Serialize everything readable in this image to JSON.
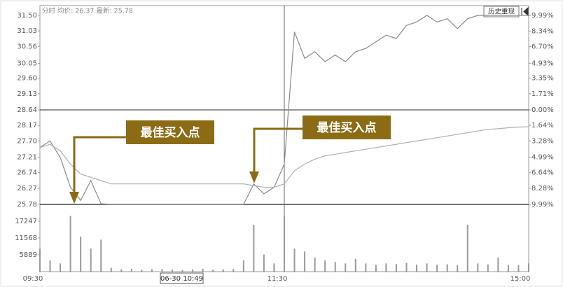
{
  "chart_data": {
    "type": "line",
    "subtitle": "分时 均价: 26.37 最新: 25.78",
    "button": "历史重现",
    "cursor_label": "06-30 10:49",
    "annotations": [
      "最佳买入点",
      "最佳买入点"
    ],
    "x": [
      0,
      5,
      10,
      15,
      20,
      25,
      30,
      35,
      40,
      45,
      50,
      55,
      60,
      65,
      70,
      75,
      80,
      85,
      90,
      95,
      100,
      105,
      110,
      115,
      120,
      125,
      130,
      135,
      140,
      145,
      150,
      155,
      160,
      165,
      170,
      175,
      180,
      185,
      190,
      195,
      200,
      205,
      210,
      215,
      220,
      225,
      230,
      235,
      240
    ],
    "xlim": [
      0,
      240
    ],
    "xticks": [
      {
        "value": 0,
        "label": "09:30"
      },
      {
        "value": 120,
        "label": "11:30"
      },
      {
        "value": 240,
        "label": "15:00"
      }
    ],
    "ylim": [
      25.78,
      31.5
    ],
    "yticks": [
      {
        "value": 31.5,
        "label": "31.50"
      },
      31.03,
      30.56,
      30.05,
      {
        "value": 29.6,
        "label": "29.60"
      },
      29.13,
      28.64,
      28.17,
      {
        "value": 27.7,
        "label": "27.70"
      },
      27.21,
      26.74,
      26.27,
      25.78
    ],
    "y2lim": [
      -9.99,
      9.99
    ],
    "y2ticks": [
      {
        "value": 9.99,
        "label": "9.99%"
      },
      {
        "value": 8.34,
        "label": "8.34%"
      },
      {
        "value": 6.7,
        "label": "6.70%"
      },
      {
        "value": 4.93,
        "label": "4.93%"
      },
      {
        "value": 3.35,
        "label": "3.35%"
      },
      {
        "value": 1.71,
        "label": "1.71%"
      },
      {
        "value": 0,
        "label": "0.00%"
      },
      {
        "value": -1.64,
        "label": "1.64%"
      },
      {
        "value": -3.28,
        "label": "3.28%"
      },
      {
        "value": -4.99,
        "label": "4.99%"
      },
      {
        "value": -6.64,
        "label": "6.64%"
      },
      {
        "value": -8.28,
        "label": "8.28%"
      },
      {
        "value": -9.99,
        "label": "9.99%"
      }
    ],
    "series": [
      {
        "color": "#8a8a8a",
        "values": [
          27.5,
          27.7,
          27.2,
          26.3,
          25.9,
          26.5,
          25.8,
          25.78,
          25.78,
          25.78,
          25.78,
          25.78,
          25.78,
          25.78,
          25.78,
          25.78,
          25.78,
          25.78,
          25.78,
          25.78,
          25.78,
          26.4,
          26.1,
          26.3,
          27.0,
          31.0,
          30.2,
          30.4,
          30.1,
          30.3,
          30.1,
          30.4,
          30.5,
          30.7,
          30.9,
          30.8,
          31.2,
          31.3,
          31.5,
          31.3,
          31.4,
          31.1,
          31.4,
          31.5,
          31.5,
          31.5,
          31.5,
          31.5,
          31.5
        ]
      },
      {
        "color": "#b0b0b0",
        "values": [
          27.5,
          27.6,
          27.4,
          27.0,
          26.7,
          26.6,
          26.5,
          26.4,
          26.4,
          26.4,
          26.4,
          26.4,
          26.4,
          26.4,
          26.4,
          26.4,
          26.4,
          26.4,
          26.4,
          26.4,
          26.4,
          26.35,
          26.3,
          26.3,
          26.4,
          26.8,
          27.0,
          27.15,
          27.25,
          27.3,
          27.35,
          27.4,
          27.45,
          27.5,
          27.55,
          27.6,
          27.65,
          27.7,
          27.75,
          27.8,
          27.85,
          27.9,
          27.95,
          28.0,
          28.05,
          28.07,
          28.1,
          28.12,
          28.13
        ]
      }
    ],
    "volume": {
      "color": "#9a9a9a",
      "ylim": [
        0,
        22900
      ],
      "yticks": [
        17247,
        11568,
        5889
      ],
      "values": [
        8000,
        4000,
        3000,
        19000,
        12000,
        8000,
        11000,
        1500,
        1000,
        1200,
        900,
        1000,
        1100,
        900,
        800,
        1000,
        1200,
        900,
        1000,
        1100,
        4000,
        16000,
        6000,
        3000,
        19000,
        8000,
        7000,
        5000,
        4000,
        3500,
        3000,
        4500,
        3000,
        2500,
        3000,
        2800,
        3200,
        2600,
        3000,
        2500,
        2700,
        2400,
        16000,
        3000,
        2600,
        5000,
        2500,
        2400,
        3000
      ]
    }
  }
}
